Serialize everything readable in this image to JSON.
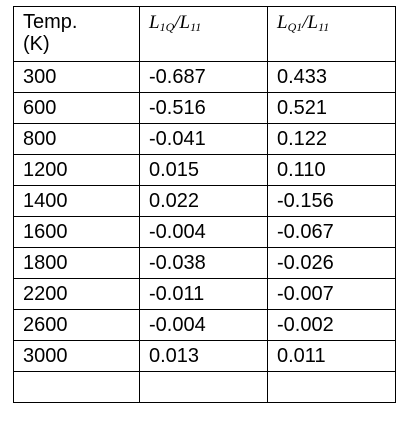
{
  "table": {
    "header": {
      "temp_line1": "Temp.",
      "temp_line2": "(K)",
      "col2": {
        "num": "L",
        "num_sub": "1Q",
        "den": "L",
        "den_sub": "11"
      },
      "col3": {
        "num": "L",
        "num_sub": "Q1",
        "den": "L",
        "den_sub": "11"
      }
    },
    "rows": [
      {
        "temp": "300",
        "l1q": "-0.687",
        "lq1": "0.433"
      },
      {
        "temp": "600",
        "l1q": "-0.516",
        "lq1": "0.521"
      },
      {
        "temp": "800",
        "l1q": "-0.041",
        "lq1": "0.122"
      },
      {
        "temp": "1200",
        "l1q": "0.015",
        "lq1": "0.110"
      },
      {
        "temp": "1400",
        "l1q": "0.022",
        "lq1": "-0.156"
      },
      {
        "temp": "1600",
        "l1q": "-0.004",
        "lq1": "-0.067"
      },
      {
        "temp": "1800",
        "l1q": "-0.038",
        "lq1": "-0.026"
      },
      {
        "temp": "2200",
        "l1q": "-0.011",
        "lq1": "-0.007"
      },
      {
        "temp": "2600",
        "l1q": "-0.004",
        "lq1": "-0.002"
      },
      {
        "temp": "3000",
        "l1q": "0.013",
        "lq1": "0.011"
      },
      {
        "temp": "",
        "l1q": "",
        "lq1": ""
      }
    ]
  }
}
